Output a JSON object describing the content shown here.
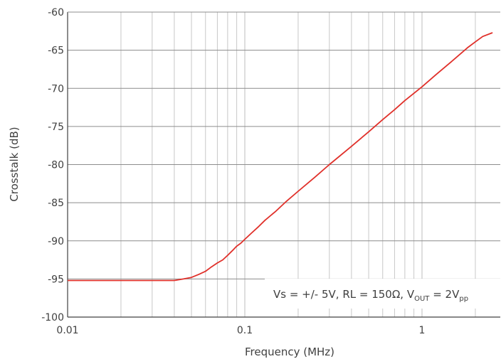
{
  "chart_data": {
    "type": "line",
    "title": "",
    "xlabel": "Frequency (MHz)",
    "ylabel": "Crosstalk (dB)",
    "x_scale": "log",
    "xlim": [
      0.01,
      2.5
    ],
    "ylim": [
      -100,
      -60
    ],
    "x_ticks": [
      {
        "value": 0.01,
        "label": "0.01"
      },
      {
        "value": 0.1,
        "label": "0.1"
      },
      {
        "value": 1,
        "label": "1"
      }
    ],
    "y_ticks": [
      {
        "value": -60,
        "label": "-60"
      },
      {
        "value": -65,
        "label": "-65"
      },
      {
        "value": -70,
        "label": "-70"
      },
      {
        "value": -75,
        "label": "-75"
      },
      {
        "value": -80,
        "label": "-80"
      },
      {
        "value": -85,
        "label": "-85"
      },
      {
        "value": -90,
        "label": "-90"
      },
      {
        "value": -95,
        "label": "-95"
      },
      {
        "value": -100,
        "label": "-100"
      }
    ],
    "grid": true,
    "series": [
      {
        "color": "#e0302a",
        "x": [
          0.01,
          0.02,
          0.03,
          0.04,
          0.045,
          0.05,
          0.055,
          0.06,
          0.065,
          0.07,
          0.075,
          0.08,
          0.085,
          0.09,
          0.095,
          0.1,
          0.11,
          0.12,
          0.13,
          0.15,
          0.17,
          0.2,
          0.25,
          0.3,
          0.4,
          0.5,
          0.6,
          0.7,
          0.8,
          1.0,
          1.2,
          1.5,
          1.8,
          2.0,
          2.2,
          2.5
        ],
        "y": [
          -95.2,
          -95.2,
          -95.2,
          -95.2,
          -95.0,
          -94.8,
          -94.4,
          -94.0,
          -93.4,
          -92.9,
          -92.5,
          -91.9,
          -91.3,
          -90.7,
          -90.3,
          -89.8,
          -88.9,
          -88.1,
          -87.3,
          -86.1,
          -84.9,
          -83.5,
          -81.6,
          -80.0,
          -77.6,
          -75.7,
          -74.1,
          -72.8,
          -71.6,
          -69.8,
          -68.2,
          -66.3,
          -64.7,
          -63.9,
          -63.2,
          -62.7
        ]
      }
    ],
    "annotation": {
      "prefix": "Vs = +/- 5V, RL = 150Ω, V",
      "sub1": "OUT",
      "middle": " = 2V",
      "sub2": "pp"
    }
  }
}
